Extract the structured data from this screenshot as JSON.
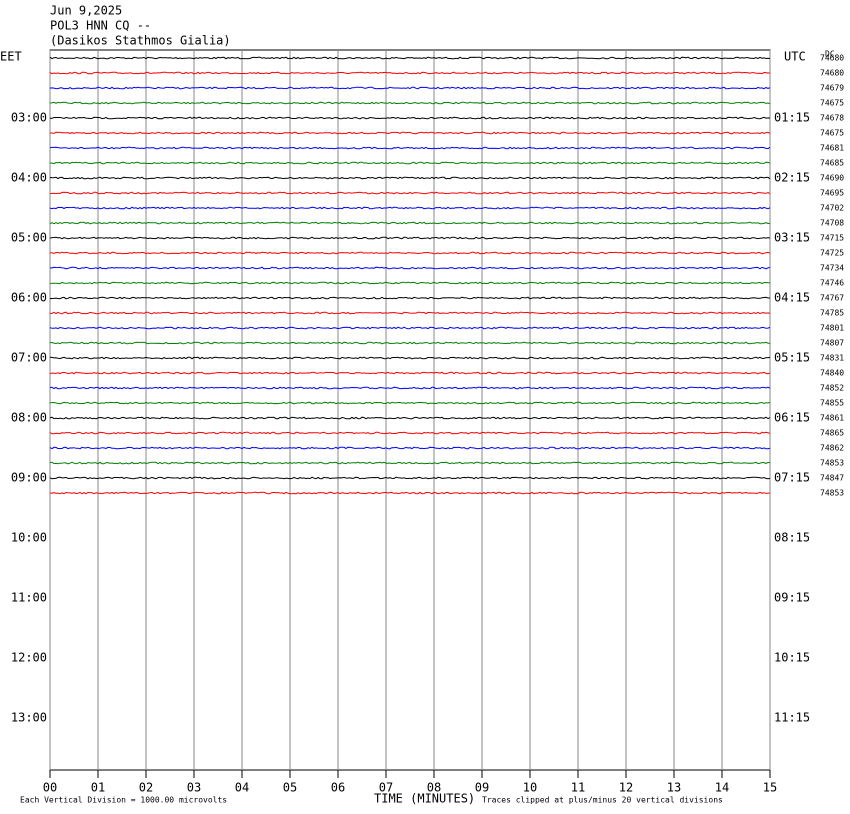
{
  "header": {
    "date": "Jun 9,2025",
    "station": "POL3 HNN CQ --",
    "name": "(Dasikos Stathmos Gialia)"
  },
  "left_label": "EET",
  "right_label": "UTC",
  "offset_label": "DC",
  "left_times": [
    "03:00",
    "04:00",
    "05:00",
    "06:00",
    "07:00",
    "08:00",
    "09:00",
    "10:00",
    "11:00",
    "12:00",
    "13:00"
  ],
  "right_times": [
    "01:15",
    "02:15",
    "03:15",
    "04:15",
    "05:15",
    "06:15",
    "07:15",
    "08:15",
    "09:15",
    "10:15",
    "11:15"
  ],
  "colors": [
    "#000000",
    "#ff0000",
    "#0000ff",
    "#008000"
  ],
  "traces": [
    74680,
    74680,
    74679,
    74675,
    74678,
    74675,
    74681,
    74685,
    74690,
    74695,
    74702,
    74708,
    74715,
    74725,
    74734,
    74746,
    74767,
    74785,
    74801,
    74807,
    74831,
    74840,
    74852,
    74855,
    74861,
    74865,
    74862,
    74853,
    74847,
    74853
  ],
  "xlim": [
    0,
    15
  ],
  "xticks": [
    {
      "value": 0,
      "label": "00"
    },
    {
      "value": 1,
      "label": "01"
    },
    {
      "value": 2,
      "label": "02"
    },
    {
      "value": 3,
      "label": "03"
    },
    {
      "value": 4,
      "label": "04"
    },
    {
      "value": 5,
      "label": "05"
    },
    {
      "value": 6,
      "label": "06"
    },
    {
      "value": 7,
      "label": "07"
    },
    {
      "value": 8,
      "label": "08"
    },
    {
      "value": 9,
      "label": "09"
    },
    10,
    11,
    12,
    13,
    14,
    15
  ],
  "footer": {
    "scale": "Each Vertical Division = 1000.00 microvolts",
    "xlabel": "TIME (MINUTES)",
    "clip": "Traces clipped at plus/minus 20 vertical divisions"
  }
}
